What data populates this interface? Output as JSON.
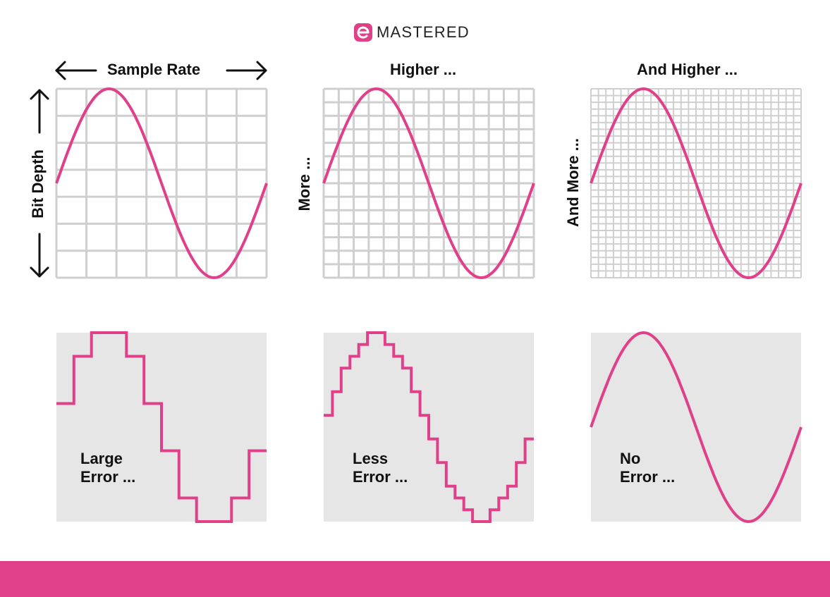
{
  "brand": {
    "name": "MASTERED",
    "logo_icon": "e-letter-icon",
    "color": "#e0408a"
  },
  "colors": {
    "wave": "#e0408a",
    "grid_line": "#cfcfcf",
    "panel_fill": "#e6e6e6",
    "footer": "#e0408a"
  },
  "top_row": {
    "sample_rate_label": "Sample Rate",
    "higher_label": "Higher ...",
    "and_higher_label": "And Higher ...",
    "bit_depth_label": "Bit Depth",
    "more_label": "More ...",
    "and_more_label": "And More ..."
  },
  "bottom_row": {
    "large_error": [
      "Large",
      "Error ..."
    ],
    "less_error": [
      "Less",
      "Error ..."
    ],
    "no_error": [
      "No",
      "Error ..."
    ]
  },
  "panels": [
    {
      "grid_cols": 7,
      "grid_rows": 7,
      "quantize_steps": 12
    },
    {
      "grid_cols": 14,
      "grid_rows": 14,
      "quantize_steps": 24
    },
    {
      "grid_cols": 28,
      "grid_rows": 28,
      "quantize_steps": 0
    }
  ]
}
